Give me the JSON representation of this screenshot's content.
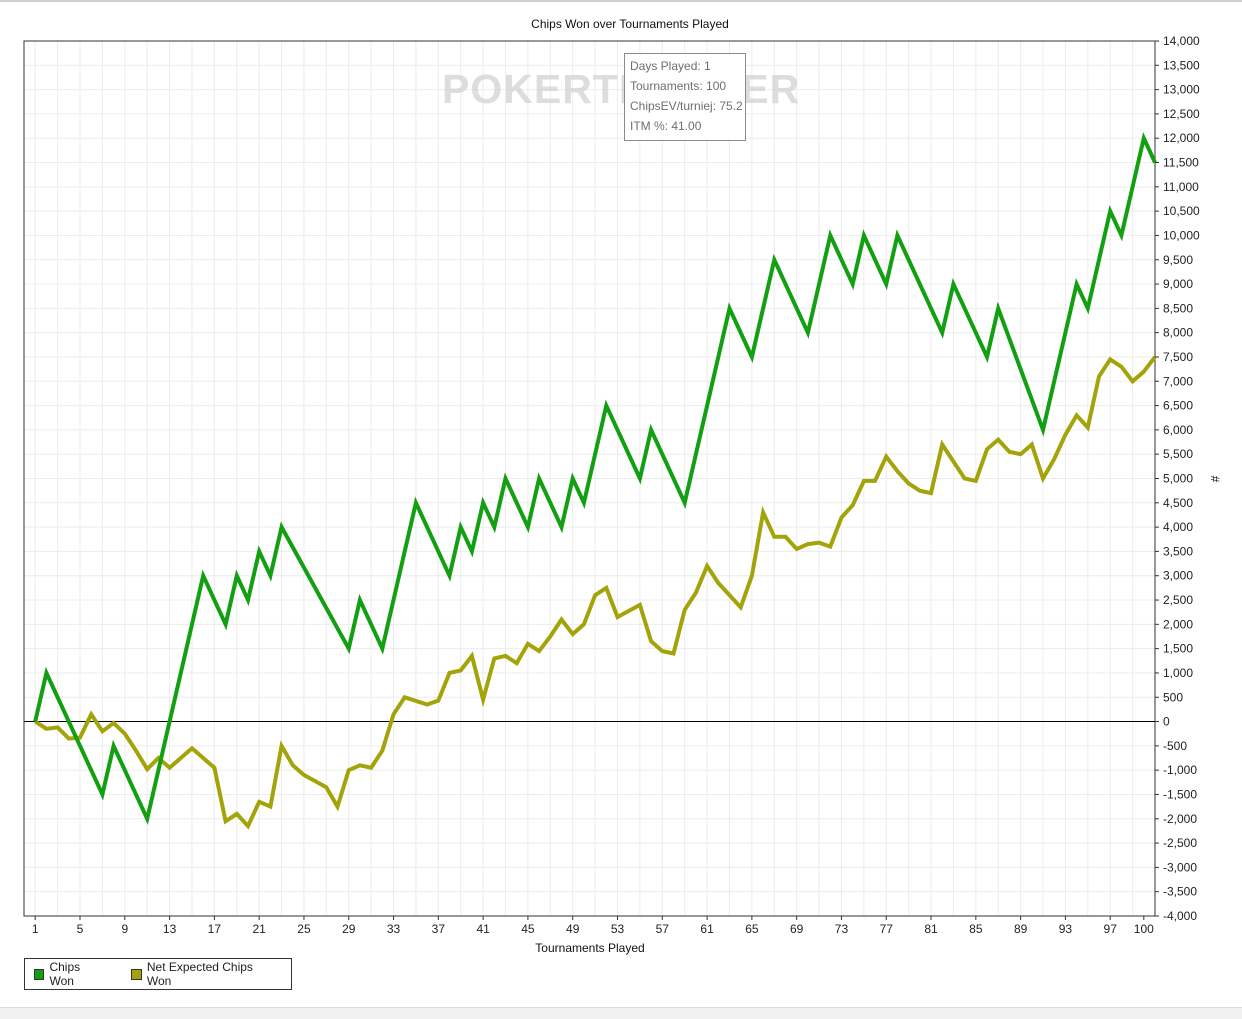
{
  "watermark": "POKERTRACKER",
  "tooltip": {
    "days_played": "Days Played: 1",
    "tournaments": "Tournaments: 100",
    "chips_ev": "ChipsEV/turniej: 75.2",
    "itm": "ITM %: 41.00"
  },
  "legend": [
    {
      "label": "Chips Won",
      "color": "#12a012"
    },
    {
      "label": "Net Expected Chips Won",
      "color": "#a3a30a"
    }
  ],
  "chart_data": {
    "type": "line",
    "title": "Chips Won over Tournaments Played",
    "xlabel": "Tournaments Played",
    "ylabel": "#",
    "xlim": [
      0,
      101
    ],
    "ylim": [
      -4000,
      14000
    ],
    "x_ticks": [
      1,
      5,
      9,
      13,
      17,
      21,
      25,
      29,
      33,
      37,
      41,
      45,
      49,
      53,
      57,
      61,
      65,
      69,
      73,
      77,
      81,
      85,
      89,
      93,
      97,
      100
    ],
    "y_ticks": [
      -4000,
      -3500,
      -3000,
      -2500,
      -2000,
      -1500,
      -1000,
      -500,
      0,
      500,
      1000,
      1500,
      2000,
      2500,
      3000,
      3500,
      4000,
      4500,
      5000,
      5500,
      6000,
      6500,
      7000,
      7500,
      8000,
      8500,
      9000,
      9500,
      10000,
      10500,
      11000,
      11500,
      12000,
      12500,
      13000,
      13500,
      14000
    ],
    "y_tick_labels": [
      "-4,000",
      "-3,500",
      "-3,000",
      "-2,500",
      "-2,000",
      "-1,500",
      "-1,000",
      "-500",
      "0",
      "500",
      "1,000",
      "1,500",
      "2,000",
      "2,500",
      "3,000",
      "3,500",
      "4,000",
      "4,500",
      "5,000",
      "5,500",
      "6,000",
      "6,500",
      "7,000",
      "7,500",
      "8,000",
      "8,500",
      "9,000",
      "9,500",
      "10,000",
      "10,500",
      "11,000",
      "11,500",
      "12,000",
      "12,500",
      "13,000",
      "13,500",
      "14,000"
    ],
    "grid": true,
    "legend_position": "bottom-left",
    "series": [
      {
        "name": "Chips Won",
        "color": "#12a012",
        "points": [
          [
            1,
            0
          ],
          [
            2,
            1000
          ],
          [
            7,
            -1500
          ],
          [
            8,
            -500
          ],
          [
            11,
            -2000
          ],
          [
            16,
            3000
          ],
          [
            18,
            2000
          ],
          [
            19,
            3000
          ],
          [
            20,
            2500
          ],
          [
            21,
            3500
          ],
          [
            22,
            3000
          ],
          [
            23,
            4000
          ],
          [
            29,
            1500
          ],
          [
            30,
            2500
          ],
          [
            32,
            1500
          ],
          [
            35,
            4500
          ],
          [
            38,
            3000
          ],
          [
            39,
            4000
          ],
          [
            40,
            3500
          ],
          [
            41,
            4500
          ],
          [
            42,
            4000
          ],
          [
            43,
            5000
          ],
          [
            45,
            4000
          ],
          [
            46,
            5000
          ],
          [
            48,
            4000
          ],
          [
            49,
            5000
          ],
          [
            50,
            4500
          ],
          [
            52,
            6500
          ],
          [
            55,
            5000
          ],
          [
            56,
            6000
          ],
          [
            59,
            4500
          ],
          [
            63,
            8500
          ],
          [
            65,
            7500
          ],
          [
            67,
            9500
          ],
          [
            70,
            8000
          ],
          [
            72,
            10000
          ],
          [
            74,
            9000
          ],
          [
            75,
            10000
          ],
          [
            77,
            9000
          ],
          [
            78,
            10000
          ],
          [
            82,
            8000
          ],
          [
            83,
            9000
          ],
          [
            86,
            7500
          ],
          [
            87,
            8500
          ],
          [
            91,
            6000
          ],
          [
            94,
            9000
          ],
          [
            95,
            8500
          ],
          [
            97,
            10500
          ],
          [
            98,
            10000
          ],
          [
            100,
            12000
          ],
          [
            101,
            11500
          ]
        ]
      },
      {
        "name": "Net Expected Chips Won",
        "color": "#a3a30a",
        "points": [
          [
            1,
            0
          ],
          [
            2,
            -150
          ],
          [
            3,
            -120
          ],
          [
            4,
            -350
          ],
          [
            5,
            -330
          ],
          [
            6,
            150
          ],
          [
            7,
            -200
          ],
          [
            8,
            -30
          ],
          [
            9,
            -250
          ],
          [
            10,
            -600
          ],
          [
            11,
            -980
          ],
          [
            12,
            -750
          ],
          [
            13,
            -950
          ],
          [
            15,
            -550
          ],
          [
            17,
            -950
          ],
          [
            18,
            -2050
          ],
          [
            19,
            -1900
          ],
          [
            20,
            -2150
          ],
          [
            21,
            -1650
          ],
          [
            22,
            -1750
          ],
          [
            23,
            -500
          ],
          [
            24,
            -900
          ],
          [
            25,
            -1100
          ],
          [
            27,
            -1350
          ],
          [
            28,
            -1750
          ],
          [
            29,
            -1000
          ],
          [
            30,
            -900
          ],
          [
            31,
            -950
          ],
          [
            32,
            -600
          ],
          [
            33,
            150
          ],
          [
            34,
            500
          ],
          [
            36,
            350
          ],
          [
            37,
            430
          ],
          [
            38,
            1000
          ],
          [
            39,
            1050
          ],
          [
            40,
            1350
          ],
          [
            41,
            450
          ],
          [
            42,
            1300
          ],
          [
            43,
            1350
          ],
          [
            44,
            1200
          ],
          [
            45,
            1600
          ],
          [
            46,
            1450
          ],
          [
            47,
            1750
          ],
          [
            48,
            2100
          ],
          [
            49,
            1800
          ],
          [
            50,
            2000
          ],
          [
            51,
            2600
          ],
          [
            52,
            2750
          ],
          [
            53,
            2150
          ],
          [
            55,
            2400
          ],
          [
            56,
            1650
          ],
          [
            57,
            1450
          ],
          [
            58,
            1400
          ],
          [
            59,
            2300
          ],
          [
            60,
            2650
          ],
          [
            61,
            3200
          ],
          [
            62,
            2850
          ],
          [
            64,
            2350
          ],
          [
            65,
            3000
          ],
          [
            66,
            4300
          ],
          [
            67,
            3800
          ],
          [
            68,
            3800
          ],
          [
            69,
            3550
          ],
          [
            70,
            3650
          ],
          [
            71,
            3680
          ],
          [
            72,
            3600
          ],
          [
            73,
            4200
          ],
          [
            74,
            4450
          ],
          [
            75,
            4950
          ],
          [
            76,
            4950
          ],
          [
            77,
            5450
          ],
          [
            78,
            5150
          ],
          [
            79,
            4900
          ],
          [
            80,
            4750
          ],
          [
            81,
            4700
          ],
          [
            82,
            5700
          ],
          [
            84,
            5000
          ],
          [
            85,
            4950
          ],
          [
            86,
            5600
          ],
          [
            87,
            5800
          ],
          [
            88,
            5550
          ],
          [
            89,
            5500
          ],
          [
            90,
            5700
          ],
          [
            91,
            5000
          ],
          [
            92,
            5400
          ],
          [
            93,
            5900
          ],
          [
            94,
            6300
          ],
          [
            95,
            6050
          ],
          [
            96,
            7100
          ],
          [
            97,
            7450
          ],
          [
            98,
            7300
          ],
          [
            99,
            7000
          ],
          [
            100,
            7200
          ],
          [
            101,
            7500
          ]
        ]
      }
    ]
  }
}
